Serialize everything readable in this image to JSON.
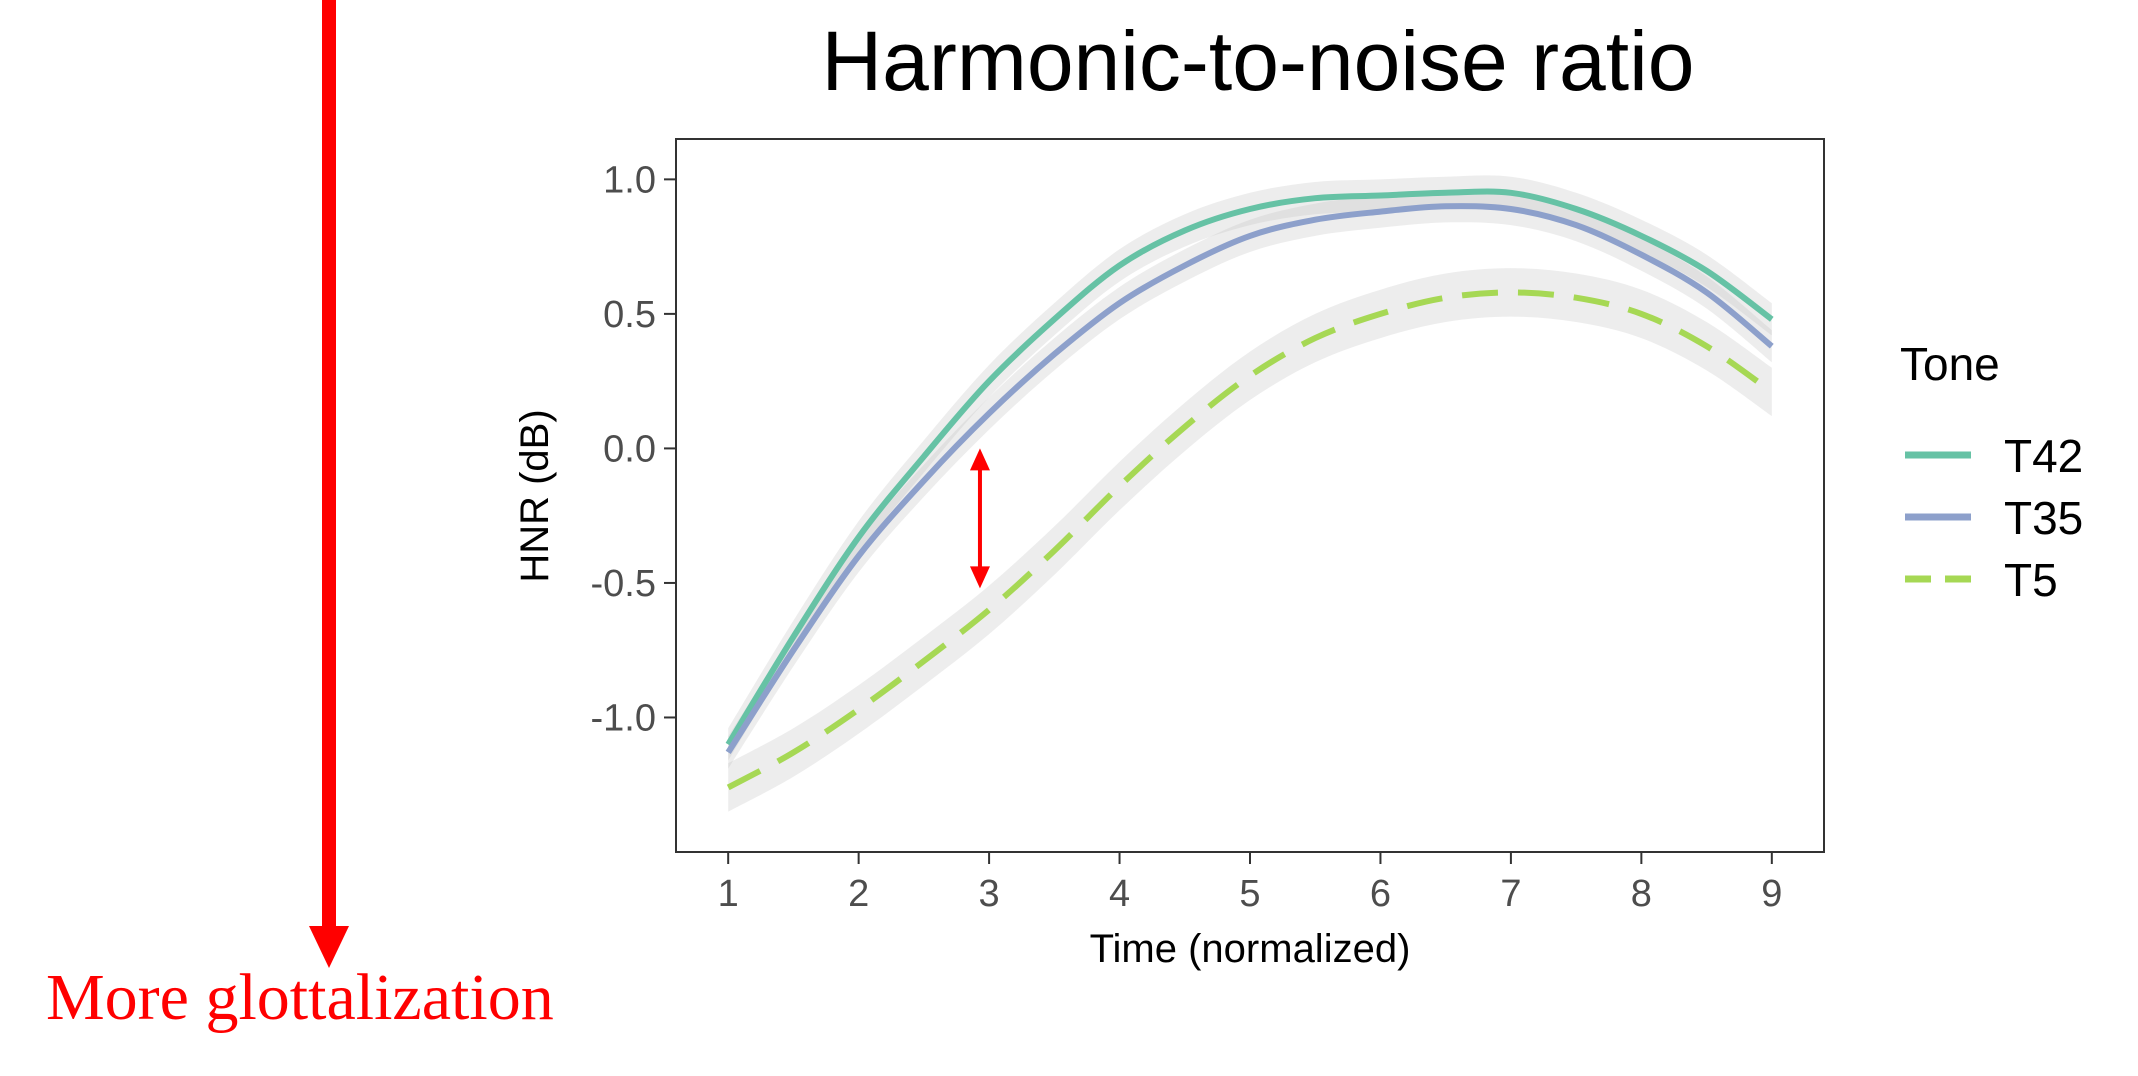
{
  "annotation": {
    "label": "More glottalization",
    "color": "#ff0000"
  },
  "chart_data": {
    "type": "line",
    "title": "Harmonic-to-noise ratio",
    "xlabel": "Time (normalized)",
    "ylabel": "HNR (dB)",
    "xlim": [
      0.6,
      9.4
    ],
    "ylim": [
      -1.5,
      1.15
    ],
    "x_ticks": [
      1,
      2,
      3,
      4,
      5,
      6,
      7,
      8,
      9
    ],
    "x_tick_labels": [
      "1",
      "2",
      "3",
      "4",
      "5",
      "6",
      "7",
      "8",
      "9"
    ],
    "y_ticks": [
      1.0,
      0.5,
      0.0,
      -0.5,
      -1.0
    ],
    "y_tick_labels": [
      "1.0",
      "0.5",
      "0.0",
      "-0.5",
      "-1.0"
    ],
    "grid": false,
    "legend": {
      "title": "Tone",
      "position": "right"
    },
    "x": [
      1,
      1.5,
      2,
      2.5,
      3,
      3.5,
      4,
      4.5,
      5,
      5.5,
      6,
      6.5,
      7,
      7.5,
      8,
      8.5,
      9
    ],
    "series": [
      {
        "name": "T42",
        "color": "#66c2a5",
        "dash": "solid",
        "values": [
          -1.1,
          -0.7,
          -0.33,
          -0.03,
          0.25,
          0.48,
          0.68,
          0.81,
          0.89,
          0.93,
          0.94,
          0.95,
          0.95,
          0.89,
          0.79,
          0.66,
          0.48
        ],
        "band": 0.06
      },
      {
        "name": "T35",
        "color": "#8da0cb",
        "dash": "solid",
        "values": [
          -1.13,
          -0.75,
          -0.4,
          -0.12,
          0.13,
          0.35,
          0.54,
          0.68,
          0.79,
          0.85,
          0.88,
          0.9,
          0.89,
          0.83,
          0.72,
          0.58,
          0.38
        ],
        "band": 0.06
      },
      {
        "name": "T5",
        "color": "#a6d854",
        "dash": "dashed",
        "values": [
          -1.26,
          -1.13,
          -0.97,
          -0.79,
          -0.6,
          -0.38,
          -0.14,
          0.08,
          0.27,
          0.41,
          0.5,
          0.56,
          0.58,
          0.56,
          0.5,
          0.38,
          0.21
        ],
        "band": 0.09
      }
    ],
    "double_arrow": {
      "x": 2.93,
      "y_from": 0.0,
      "y_to": -0.52,
      "color": "#ff0000"
    }
  }
}
